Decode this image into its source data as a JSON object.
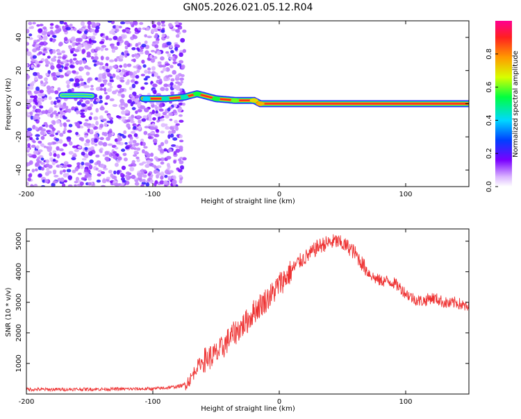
{
  "title": "GN05.2026.021.05.12.R04",
  "chart_data": [
    {
      "type": "heatmap",
      "title": "GN05.2026.021.05.12.R04",
      "xlabel": "Height of straight line (km)",
      "ylabel": "Frequency (Hz)",
      "xlim": [
        -200,
        150
      ],
      "ylim": [
        -50,
        50
      ],
      "xticks": [
        -200,
        -100,
        0,
        100
      ],
      "xtick_labels": [
        "-200",
        "-100",
        "0",
        "100"
      ],
      "yticks": [
        -40,
        -20,
        0,
        20,
        40
      ],
      "ytick_labels": [
        "-40",
        "-20",
        "0",
        "20",
        "40"
      ],
      "colorbar": {
        "label": "Normalized spectral amplitude",
        "range": [
          0,
          1
        ],
        "ticks": [
          0.0,
          0.2,
          0.4,
          0.6,
          0.8
        ],
        "tick_labels": [
          "0.0",
          "0.2",
          "0.4",
          "0.6",
          "0.8"
        ]
      },
      "noise_region_x": [
        -200,
        -75
      ],
      "ridge": [
        {
          "x": -170,
          "y": 5,
          "v": 0.25
        },
        {
          "x": -155,
          "y": 5,
          "v": 0.35
        },
        {
          "x": -105,
          "y": 3,
          "v": 0.4
        },
        {
          "x": -90,
          "y": 3,
          "v": 0.45
        },
        {
          "x": -75,
          "y": 4,
          "v": 0.45
        },
        {
          "x": -65,
          "y": 6,
          "v": 0.55
        },
        {
          "x": -50,
          "y": 3,
          "v": 0.55
        },
        {
          "x": -35,
          "y": 2,
          "v": 0.6
        },
        {
          "x": -20,
          "y": 2,
          "v": 0.7
        },
        {
          "x": -15,
          "y": 0,
          "v": 0.75
        },
        {
          "x": 0,
          "y": 0,
          "v": 0.85
        },
        {
          "x": 20,
          "y": 0,
          "v": 0.9
        },
        {
          "x": 50,
          "y": 0,
          "v": 0.95
        },
        {
          "x": 90,
          "y": 0,
          "v": 0.95
        },
        {
          "x": 120,
          "y": 0,
          "v": 0.95
        },
        {
          "x": 150,
          "y": 0,
          "v": 0.95
        }
      ]
    },
    {
      "type": "line",
      "xlabel": "Height of straight line (km)",
      "ylabel": "SNR (10 * v/v)",
      "xlim": [
        -200,
        150
      ],
      "ylim": [
        0,
        5400
      ],
      "xticks": [
        -200,
        -100,
        0,
        100
      ],
      "xtick_labels": [
        "-200",
        "-100",
        "0",
        "100"
      ],
      "yticks": [
        1000,
        2000,
        3000,
        4000,
        5000
      ],
      "ytick_labels": [
        "1000",
        "2000",
        "3000",
        "4000",
        "5000"
      ],
      "color": "#ee3333",
      "series": [
        {
          "name": "SNR",
          "x": [
            -200,
            -180,
            -160,
            -140,
            -120,
            -100,
            -90,
            -80,
            -75,
            -70,
            -65,
            -60,
            -55,
            -50,
            -45,
            -40,
            -35,
            -30,
            -25,
            -20,
            -15,
            -10,
            -5,
            0,
            5,
            10,
            15,
            20,
            25,
            30,
            35,
            40,
            45,
            50,
            55,
            60,
            65,
            70,
            75,
            80,
            85,
            90,
            95,
            100,
            105,
            110,
            115,
            120,
            125,
            130,
            135,
            140,
            145,
            150
          ],
          "y": [
            150,
            150,
            155,
            160,
            165,
            170,
            200,
            250,
            300,
            500,
            900,
            1100,
            1200,
            1300,
            1500,
            1800,
            2000,
            2200,
            2400,
            2700,
            2900,
            3100,
            3300,
            3600,
            3800,
            4050,
            4300,
            4450,
            4600,
            4800,
            4900,
            4950,
            5000,
            4900,
            4800,
            4600,
            4300,
            4000,
            3800,
            3700,
            3700,
            3650,
            3500,
            3300,
            3150,
            3050,
            3050,
            3150,
            3100,
            3000,
            2950,
            3000,
            2900,
            2800
          ]
        }
      ]
    }
  ]
}
